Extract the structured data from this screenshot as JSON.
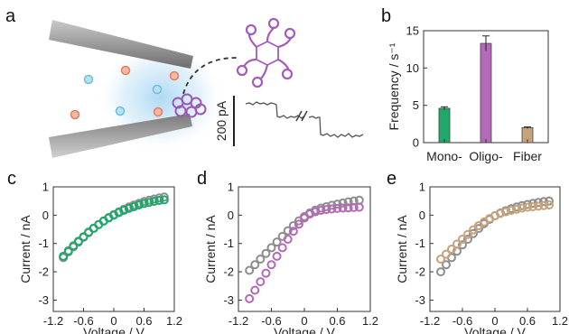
{
  "panel_labels": [
    "a",
    "b",
    "c",
    "d",
    "e"
  ],
  "scale_bar_label": "200 pA",
  "chart_data": [
    {
      "type": "bar",
      "panel": "b",
      "categories": [
        "Mono-",
        "Oligo-",
        "Fiber"
      ],
      "values": [
        4.6,
        13.3,
        2.0
      ],
      "errors": [
        0.2,
        1.0,
        0.1
      ],
      "colors": [
        "#1fa86a",
        "#b46ab8",
        "#c8a27a"
      ],
      "ylabel": "Frequency / s⁻¹",
      "ylim": [
        0,
        15
      ],
      "yticks": [
        0,
        5,
        10,
        15
      ],
      "grid": false
    },
    {
      "type": "scatter",
      "panel": "c",
      "xlabel": "Voltage / V",
      "ylabel": "Current / nA",
      "xlim": [
        -1.2,
        1.2
      ],
      "ylim": [
        -3.4,
        1.0
      ],
      "xticks": [
        -1.2,
        -0.6,
        0,
        0.6,
        1.2
      ],
      "yticks": [
        -3,
        -2,
        -1,
        0,
        1
      ],
      "series": [
        {
          "color": "#8e8e8e",
          "x": [
            -1.0,
            -0.9,
            -0.8,
            -0.7,
            -0.6,
            -0.5,
            -0.4,
            -0.3,
            -0.2,
            -0.1,
            0,
            0.1,
            0.2,
            0.3,
            0.4,
            0.5,
            0.6,
            0.7,
            0.8,
            0.9,
            1.0
          ],
          "y": [
            -1.5,
            -1.3,
            -1.12,
            -0.95,
            -0.78,
            -0.62,
            -0.47,
            -0.33,
            -0.2,
            -0.08,
            0.02,
            0.12,
            0.21,
            0.29,
            0.36,
            0.42,
            0.48,
            0.53,
            0.57,
            0.61,
            0.64
          ]
        },
        {
          "color": "#1fa86a",
          "x": [
            -1.0,
            -0.9,
            -0.8,
            -0.7,
            -0.6,
            -0.5,
            -0.4,
            -0.3,
            -0.2,
            -0.1,
            0,
            0.1,
            0.2,
            0.3,
            0.4,
            0.5,
            0.6,
            0.7,
            0.8,
            0.9,
            1.0
          ],
          "y": [
            -1.45,
            -1.26,
            -1.08,
            -0.92,
            -0.76,
            -0.6,
            -0.46,
            -0.33,
            -0.21,
            -0.1,
            0.0,
            0.09,
            0.17,
            0.24,
            0.3,
            0.36,
            0.41,
            0.45,
            0.49,
            0.52,
            0.54
          ]
        }
      ]
    },
    {
      "type": "scatter",
      "panel": "d",
      "xlabel": "Voltage / V",
      "ylabel": "Current / nA",
      "xlim": [
        -1.2,
        1.2
      ],
      "ylim": [
        -3.4,
        1.0
      ],
      "xticks": [
        -1.2,
        -0.6,
        0,
        0.6,
        1.2
      ],
      "yticks": [
        -3,
        -2,
        -1,
        0,
        1
      ],
      "series": [
        {
          "color": "#8e8e8e",
          "x": [
            -1.0,
            -0.9,
            -0.8,
            -0.7,
            -0.6,
            -0.5,
            -0.4,
            -0.3,
            -0.2,
            -0.1,
            0,
            0.1,
            0.2,
            0.3,
            0.4,
            0.5,
            0.6,
            0.7,
            0.8,
            0.9,
            1.0
          ],
          "y": [
            -1.95,
            -1.75,
            -1.55,
            -1.35,
            -1.15,
            -0.95,
            -0.75,
            -0.55,
            -0.37,
            -0.2,
            -0.05,
            0.08,
            0.18,
            0.25,
            0.3,
            0.35,
            0.39,
            0.43,
            0.47,
            0.5,
            0.53
          ]
        },
        {
          "color": "#b46ab8",
          "x": [
            -1.0,
            -0.9,
            -0.8,
            -0.7,
            -0.6,
            -0.5,
            -0.4,
            -0.3,
            -0.2,
            -0.1,
            0,
            0.1,
            0.2,
            0.3,
            0.4,
            0.5,
            0.6,
            0.7,
            0.8,
            0.9,
            1.0
          ],
          "y": [
            -2.95,
            -2.65,
            -2.35,
            -2.05,
            -1.75,
            -1.45,
            -1.15,
            -0.85,
            -0.57,
            -0.32,
            -0.1,
            0.04,
            0.12,
            0.17,
            0.2,
            0.22,
            0.24,
            0.25,
            0.26,
            0.27,
            0.28
          ]
        }
      ]
    },
    {
      "type": "scatter",
      "panel": "e",
      "xlabel": "Voltage / V",
      "ylabel": "Current / nA",
      "xlim": [
        -1.2,
        1.2
      ],
      "ylim": [
        -3.4,
        1.0
      ],
      "xticks": [
        -1.2,
        -0.6,
        0,
        0.6,
        1.2
      ],
      "yticks": [
        -3,
        -2,
        -1,
        0,
        1
      ],
      "series": [
        {
          "color": "#8e8e8e",
          "x": [
            -1.0,
            -0.9,
            -0.8,
            -0.7,
            -0.6,
            -0.5,
            -0.4,
            -0.3,
            -0.2,
            -0.1,
            0,
            0.1,
            0.2,
            0.3,
            0.4,
            0.5,
            0.6,
            0.7,
            0.8,
            0.9,
            1.0
          ],
          "y": [
            -2.0,
            -1.75,
            -1.5,
            -1.27,
            -1.05,
            -0.85,
            -0.65,
            -0.47,
            -0.3,
            -0.15,
            -0.02,
            0.08,
            0.16,
            0.23,
            0.29,
            0.34,
            0.38,
            0.42,
            0.45,
            0.48,
            0.5
          ]
        },
        {
          "color": "#c8a27a",
          "x": [
            -1.0,
            -0.9,
            -0.8,
            -0.7,
            -0.6,
            -0.5,
            -0.4,
            -0.3,
            -0.2,
            -0.1,
            0,
            0.1,
            0.2,
            0.3,
            0.4,
            0.5,
            0.6,
            0.7,
            0.8,
            0.9,
            1.0
          ],
          "y": [
            -1.55,
            -1.38,
            -1.2,
            -1.02,
            -0.85,
            -0.68,
            -0.52,
            -0.37,
            -0.24,
            -0.12,
            -0.02,
            0.06,
            0.12,
            0.17,
            0.21,
            0.25,
            0.28,
            0.3,
            0.32,
            0.34,
            0.36
          ]
        }
      ]
    }
  ]
}
